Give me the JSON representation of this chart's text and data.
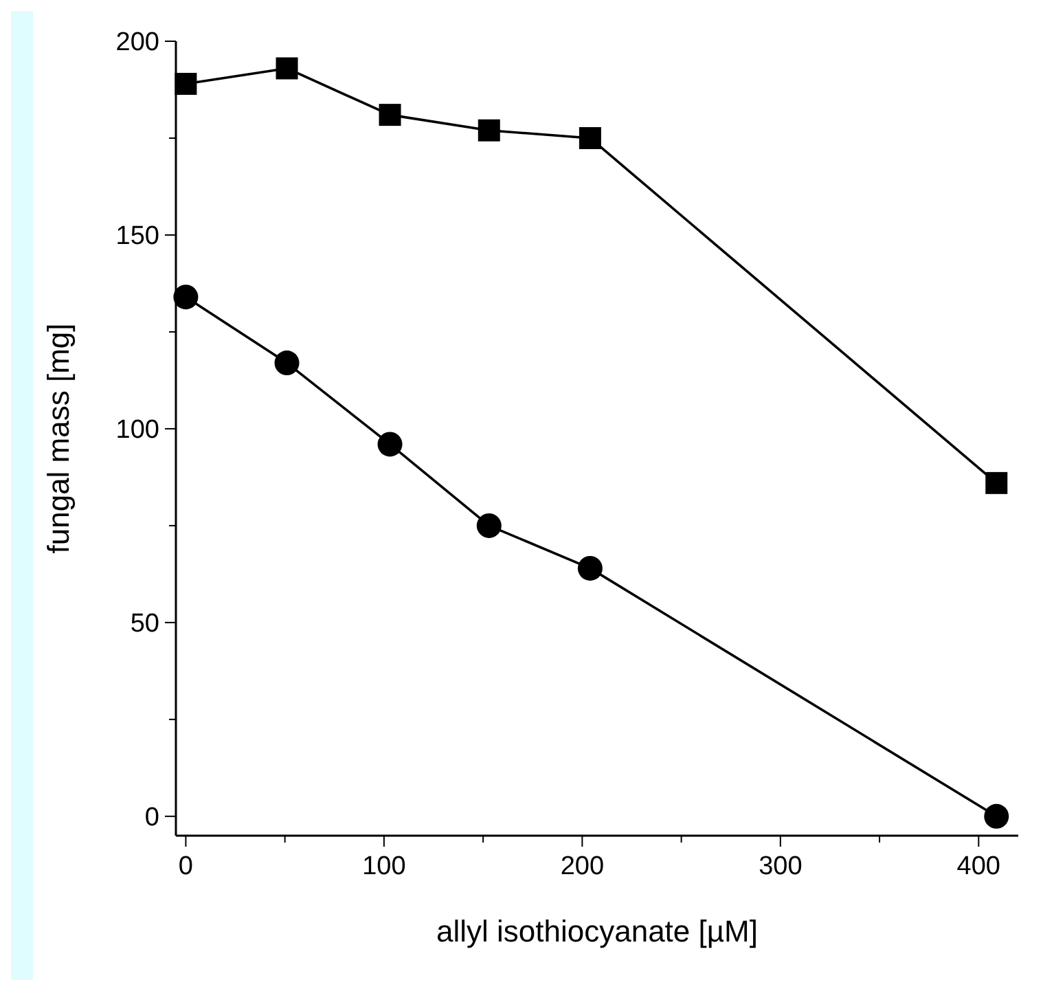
{
  "chart_data": {
    "type": "line",
    "xlabel": "allyl isothiocyanate [µM]",
    "ylabel": "fungal mass [mg]",
    "xlim": [
      -5,
      420
    ],
    "xticks": [
      0,
      {
        "value": 50,
        "label": null
      },
      100,
      {
        "value": 150,
        "label": null
      },
      200,
      {
        "value": 250,
        "label": null
      },
      300,
      {
        "value": 350,
        "label": null
      },
      400
    ],
    "ylim": [
      -5,
      200
    ],
    "yticks": [
      0,
      {
        "value": 25,
        "label": null
      },
      50,
      {
        "value": 75,
        "label": null
      },
      100,
      {
        "value": 125,
        "label": null
      },
      150,
      {
        "value": 175,
        "label": null
      },
      200
    ],
    "grid": false,
    "series": [
      {
        "color": "#000000",
        "marker": "square",
        "x": [
          0,
          51,
          103,
          153,
          204,
          409
        ],
        "values": [
          189,
          193,
          181,
          177,
          175,
          86
        ]
      },
      {
        "color": "#000000",
        "marker": "circle",
        "x": [
          0,
          51,
          103,
          153,
          204,
          409
        ],
        "values": [
          134,
          117,
          96,
          75,
          64,
          0
        ]
      }
    ]
  }
}
